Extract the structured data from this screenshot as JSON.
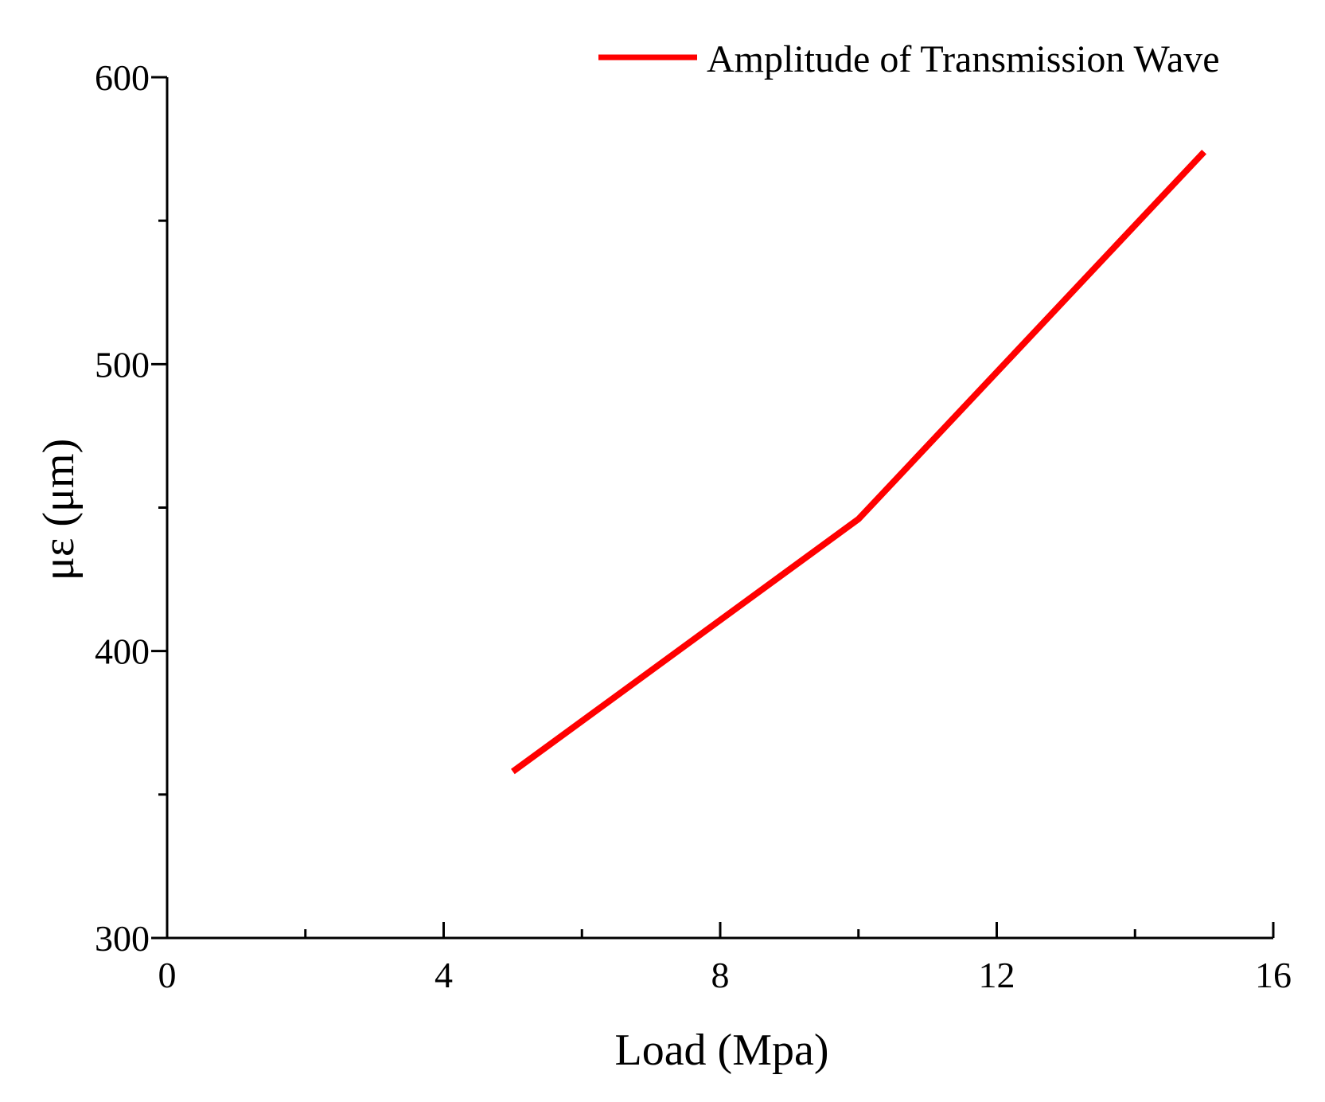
{
  "chart_data": {
    "type": "line",
    "title": "",
    "xlabel": "Load (Mpa)",
    "ylabel": "με (μm)",
    "xlim": [
      0,
      16
    ],
    "ylim": [
      300,
      600
    ],
    "x_ticks": [
      0,
      4,
      8,
      12,
      16
    ],
    "x_ticks_minor": [
      2,
      6,
      10,
      14
    ],
    "y_ticks": [
      300,
      400,
      500,
      600
    ],
    "y_ticks_minor": [
      350,
      450,
      550
    ],
    "x_tick_labels": [
      "0",
      "4",
      "8",
      "12",
      "16"
    ],
    "y_tick_labels": [
      "300",
      "400",
      "500",
      "600"
    ],
    "grid": false,
    "legend_position": "top-right",
    "series": [
      {
        "name": "Amplitude of Transmission Wave",
        "color": "#ff0000",
        "x": [
          5,
          10,
          15
        ],
        "values": [
          358,
          446,
          574
        ]
      }
    ]
  }
}
